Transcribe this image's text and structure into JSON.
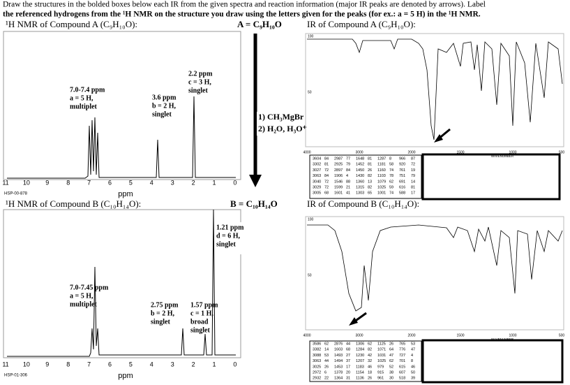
{
  "instructions": [
    "Draw the structures in the bolded boxes below each IR from the given spectra and reaction information (major IR peaks are denoted by arrows).  Label",
    "the referenced hydrogens from the ¹H NMR on the structure you draw using the letters given for the peaks (for ex.: a = 5 H) in the ¹H NMR."
  ],
  "reaction": [
    "1) CH₃MgBr",
    "2) H₂O, H₃O⁺"
  ],
  "nmr_axis": {
    "ticks": [
      11,
      10,
      9,
      8,
      7,
      6,
      5,
      4,
      3,
      2,
      1,
      0
    ],
    "label": "ppm"
  },
  "ir_axis": {
    "xticks": [
      "4000",
      "3000",
      "2000",
      "1500",
      "1000",
      "500"
    ],
    "yticks": [
      "100",
      "50"
    ],
    "xlabel": "WAVENUMBER"
  },
  "compound_a": {
    "nmr_title": "¹H NMR of Compound A (C₉H₁₀O):",
    "formula": "A = C₉H₁₀O",
    "ir_title": "IR of Compound A (C₉H₁₀O):",
    "nmr_code": "HSP-00-878",
    "nmr_peaks": [
      [
        "7.0-7.4 ppm",
        "a = 5 H,",
        "multiplet"
      ],
      [
        "3.6 ppm",
        "b = 2 H,",
        "singlet"
      ],
      [
        "2.2 ppm",
        "c = 3 H,",
        "singlet"
      ]
    ],
    "ir_table": [
      [
        [
          3604,
          84
        ],
        [
          3302,
          81
        ],
        [
          3027,
          72
        ],
        [
          3063,
          84
        ],
        [
          3040,
          72
        ],
        [
          3029,
          72
        ],
        [
          3005,
          68
        ]
      ],
      [
        [
          2987,
          77
        ],
        [
          2925,
          79
        ],
        [
          2897,
          84
        ],
        [
          1906,
          4
        ],
        [
          1546,
          88
        ],
        [
          1599,
          21
        ],
        [
          1601,
          41
        ]
      ],
      [
        [
          1648,
          81
        ],
        [
          1452,
          81
        ],
        [
          1450,
          26
        ],
        [
          1430,
          82
        ],
        [
          1360,
          13
        ],
        [
          1315,
          82
        ],
        [
          1303,
          65
        ]
      ],
      [
        [
          1287,
          8
        ],
        [
          1181,
          58
        ],
        [
          1160,
          74
        ],
        [
          1103,
          78
        ],
        [
          1079,
          62
        ],
        [
          1025,
          59
        ],
        [
          1001,
          74
        ]
      ],
      [
        [
          966,
          87
        ],
        [
          920,
          72
        ],
        [
          761,
          19
        ],
        [
          751,
          79
        ],
        [
          691,
          14
        ],
        [
          616,
          81
        ],
        [
          588,
          17
        ]
      ]
    ]
  },
  "compound_b": {
    "nmr_title": "¹H NMR of Compound B (C₁₀H₁₄O):",
    "formula": "B = C₁₀H₁₄O",
    "ir_title": "IR of Compound B (C₁₀H₁₄O):",
    "nmr_code": "HSP-01-306",
    "nmr_peaks": [
      [
        "7.0-7.45 ppm",
        "a = 5 H,",
        "multiplet"
      ],
      [
        "2.75 ppm",
        "b = 2 H,",
        "singlet"
      ],
      [
        "1.57 ppm",
        "c = 1 H,",
        "broad",
        "singlet"
      ],
      [
        "1.21 ppm",
        "d = 6 H,",
        "singlet"
      ]
    ],
    "ir_table": [
      [
        [
          3586,
          62
        ],
        [
          3382,
          14
        ],
        [
          3088,
          53
        ],
        [
          3063,
          44
        ],
        [
          3025,
          26
        ],
        [
          2972,
          6
        ],
        [
          2932,
          22
        ]
      ],
      [
        [
          2876,
          44
        ],
        [
          1603,
          68
        ],
        [
          1493,
          27
        ],
        [
          1494,
          37
        ],
        [
          1453,
          17
        ],
        [
          1378,
          20
        ],
        [
          1364,
          31
        ]
      ],
      [
        [
          1306,
          62
        ],
        [
          1284,
          82
        ],
        [
          1230,
          42
        ],
        [
          1207,
          32
        ],
        [
          1183,
          46
        ],
        [
          1154,
          18
        ],
        [
          1136,
          26
        ]
      ],
      [
        [
          1125,
          26
        ],
        [
          1071,
          64
        ],
        [
          1031,
          47
        ],
        [
          1025,
          62
        ],
        [
          979,
          52
        ],
        [
          915,
          38
        ],
        [
          961,
          30
        ]
      ],
      [
        [
          765,
          53
        ],
        [
          776,
          47
        ],
        [
          727,
          4
        ],
        [
          701,
          8
        ],
        [
          615,
          46
        ],
        [
          607,
          50
        ],
        [
          518,
          39
        ]
      ]
    ]
  }
}
